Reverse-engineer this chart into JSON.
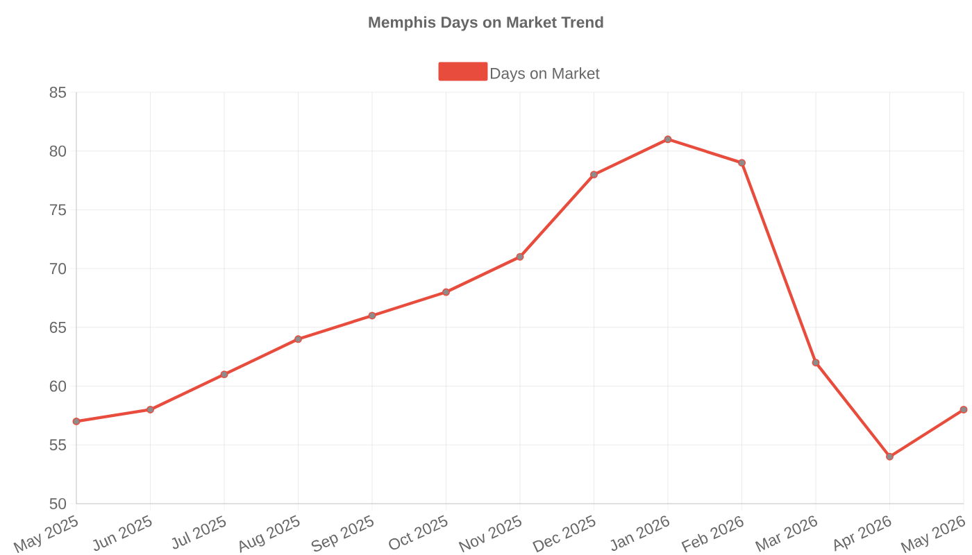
{
  "chart_data": {
    "type": "line",
    "title": "Memphis Days on Market Trend",
    "categories": [
      "May 2025",
      "Jun 2025",
      "Jul 2025",
      "Aug 2025",
      "Sep 2025",
      "Oct 2025",
      "Nov 2025",
      "Dec 2025",
      "Jan 2026",
      "Feb 2026",
      "Mar 2026",
      "Apr 2026",
      "May 2026"
    ],
    "series": [
      {
        "name": "Days on Market",
        "color": "#e84c3d",
        "values": [
          57,
          58,
          61,
          64,
          66,
          68,
          71,
          78,
          81,
          79,
          62,
          54,
          58
        ]
      }
    ],
    "ylim": [
      50,
      85
    ],
    "yticks": [
      50,
      55,
      60,
      65,
      70,
      75,
      80,
      85
    ],
    "grid": true,
    "legend": "top",
    "marker": "circle",
    "line_style": "solid"
  }
}
